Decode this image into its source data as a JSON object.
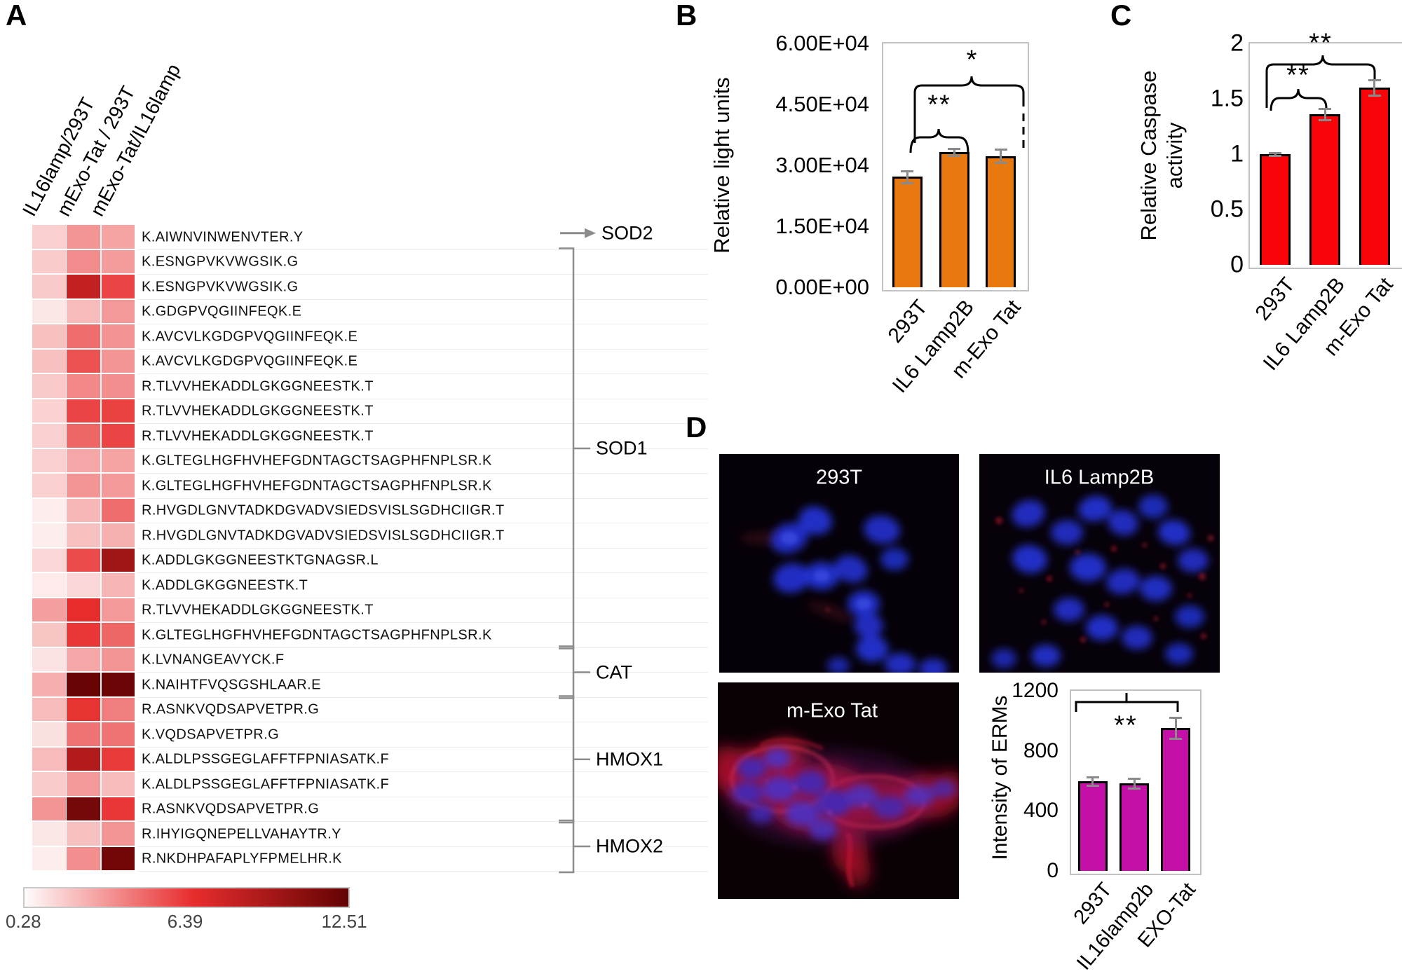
{
  "figure_label": {
    "a": "A",
    "b": "B",
    "c": "C",
    "d": "D"
  },
  "chart_data": [
    {
      "id": "peptide_heatmap",
      "panel": "A",
      "type": "heatmap",
      "columns": [
        "IL16lamp/293T",
        "mExo-Tat / 293T",
        "mExo-Tat/IL16lamp"
      ],
      "rows": [
        "K.AIWNVINWENVTER.Y",
        "K.ESNGPVKVWGSIK.G",
        "K.ESNGPVKVWGSIK.G",
        "K.GDGPVQGIINFEQK.E",
        "K.AVCVLKGDGPVQGIINFEQK.E",
        "K.AVCVLKGDGPVQGIINFEQK.E",
        "R.TLVVHEKADDLGKGGNEESTK.T",
        "R.TLVVHEKADDLGKGGNEESTK.T",
        "R.TLVVHEKADDLGKGGNEESTK.T",
        "K.GLTEGLHGFHVHEFGDNTAGCTSAGPHFNPLSR.K",
        "K.GLTEGLHGFHVHEFGDNTAGCTSAGPHFNPLSR.K",
        "R.HVGDLGNVTADKDGVADVSIEDSVISLSGDHCIIGR.T",
        "R.HVGDLGNVTADKDGVADVSIEDSVISLSGDHCIIGR.T",
        "K.ADDLGKGGNEESTKTGNAGSR.L",
        "K.ADDLGKGGNEESTK.T",
        "R.TLVVHEKADDLGKGGNEESTK.T",
        "K.GLTEGLHGFHVHEFGDNTAGCTSAGPHFNPLSR.K",
        "K.LVNANGEAVYCK.F",
        "K.NAIHTFVQSGSHLAAR.E",
        "R.ASNKVQDSAPVETPR.G",
        "K.VQDSAPVETPR.G",
        "K.ALDLPSSGEGLAFFTFPNIASATK.F",
        "K.ALDLPSSGEGLAFFTFPNIASATK.F",
        "R.ASNKVQDSAPVETPR.G",
        "R.IHYIGQNEPELLVAHAYTR.Y",
        "R.NKDHPAFAPLYFPMELHR.K"
      ],
      "values": [
        [
          1.6,
          3.3,
          2.9
        ],
        [
          1.7,
          3.6,
          3.1
        ],
        [
          1.8,
          8.1,
          5.7
        ],
        [
          0.9,
          2.2,
          3.2
        ],
        [
          2.0,
          4.5,
          3.4
        ],
        [
          2.0,
          5.3,
          3.3
        ],
        [
          1.8,
          3.7,
          3.5
        ],
        [
          1.5,
          5.7,
          5.8
        ],
        [
          1.6,
          4.7,
          5.7
        ],
        [
          1.6,
          2.8,
          2.9
        ],
        [
          1.6,
          3.3,
          3.2
        ],
        [
          0.7,
          2.3,
          4.5
        ],
        [
          0.7,
          2.0,
          2.5
        ],
        [
          1.4,
          5.5,
          9.7
        ],
        [
          0.8,
          1.4,
          2.4
        ],
        [
          3.0,
          6.4,
          3.2
        ],
        [
          1.9,
          6.1,
          4.7
        ],
        [
          1.0,
          2.8,
          3.3
        ],
        [
          2.6,
          12.3,
          12.1
        ],
        [
          2.2,
          6.2,
          4.0
        ],
        [
          1.1,
          4.3,
          4.3
        ],
        [
          2.2,
          8.9,
          6.0
        ],
        [
          1.7,
          3.2,
          2.2
        ],
        [
          3.3,
          11.7,
          6.1
        ],
        [
          0.9,
          2.0,
          3.3
        ],
        [
          0.7,
          3.5,
          11.8
        ]
      ],
      "gene_groups": [
        {
          "gene": "SOD2",
          "start": 0,
          "end": 0,
          "marker": "arrow"
        },
        {
          "gene": "SOD1",
          "start": 1,
          "end": 16,
          "marker": "bracket"
        },
        {
          "gene": "CAT",
          "start": 17,
          "end": 18,
          "marker": "bracket"
        },
        {
          "gene": "HMOX1",
          "start": 19,
          "end": 23,
          "marker": "bracket"
        },
        {
          "gene": "HMOX2",
          "start": 24,
          "end": 25,
          "marker": "bracket"
        }
      ],
      "colorbar": {
        "min": 0.28,
        "mid": 6.39,
        "max": 12.51,
        "labels": [
          "0.28",
          "6.39",
          "12.51"
        ]
      }
    },
    {
      "id": "luminescence",
      "panel": "B",
      "type": "bar",
      "categories": [
        "293T",
        "IL6 Lamp2B",
        "m-Exo Tat"
      ],
      "values": [
        27200,
        33300,
        32300
      ],
      "errors": [
        1500,
        900,
        1600
      ],
      "ylabel": "Relative light units",
      "yticks": [
        "0.00E+00",
        "1.50E+04",
        "3.00E+04",
        "4.50E+04",
        "6.00E+04"
      ],
      "ylim": [
        0,
        60000
      ],
      "bar_color": "#E8790F",
      "significance": [
        {
          "pair": "293T vs IL6 Lamp2B",
          "label": "**"
        },
        {
          "pair": "293T vs m-Exo Tat",
          "label": "*"
        }
      ]
    },
    {
      "id": "caspase_activity",
      "panel": "C",
      "type": "bar",
      "categories": [
        "293T",
        "IL6 Lamp2B",
        "m-Exo Tat"
      ],
      "values": [
        1.0,
        1.36,
        1.6
      ],
      "errors": [
        0.015,
        0.05,
        0.07
      ],
      "ylabel": "Relative Caspase activity",
      "yticks": [
        "0",
        "0.5",
        "1",
        "1.5",
        "2"
      ],
      "ylim": [
        0,
        2
      ],
      "bar_color": "#F90408",
      "significance": [
        {
          "pair": "293T vs IL6 Lamp2B",
          "label": "**"
        },
        {
          "pair": "293T vs m-Exo Tat",
          "label": "**"
        }
      ]
    },
    {
      "id": "erm_intensity",
      "panel": "D",
      "type": "bar",
      "categories": [
        "293T",
        "IL16lamp2b",
        "EXO-Tat"
      ],
      "values": [
        600,
        585,
        955
      ],
      "errors": [
        28,
        32,
        70
      ],
      "ylabel": "Intensity of ERMs",
      "yticks": [
        "0",
        "400",
        "800",
        "1200"
      ],
      "ylim": [
        0,
        1200
      ],
      "bar_color": "#C60FA8",
      "significance": [
        {
          "pair": "293T vs EXO-Tat",
          "label": "**"
        }
      ]
    }
  ],
  "panelD_images": [
    {
      "label": "293T"
    },
    {
      "label": "IL6 Lamp2B"
    },
    {
      "label": "m-Exo Tat"
    }
  ]
}
